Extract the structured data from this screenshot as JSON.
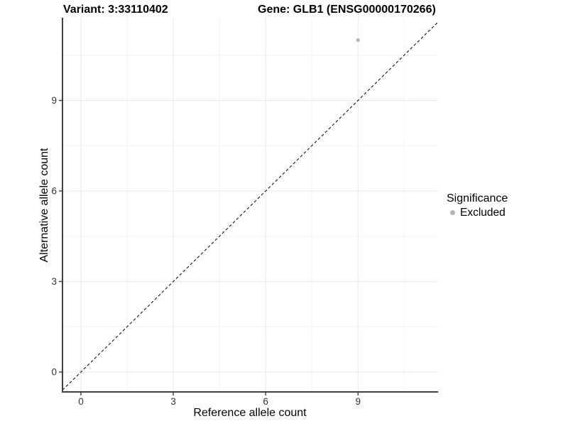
{
  "titles": {
    "variant": "Variant: 3:33110402",
    "gene": "Gene: GLB1 (ENSG00000170266)"
  },
  "legend": {
    "title": "Significance",
    "items": [
      {
        "label": "Excluded",
        "color": "#b4b4b4"
      }
    ]
  },
  "chart_data": {
    "type": "scatter",
    "title_left": "Variant: 3:33110402",
    "title_right": "Gene: GLB1 (ENSG00000170266)",
    "xlabel": "Reference allele count",
    "ylabel": "Alternative allele count",
    "series": [
      {
        "name": "Excluded",
        "color": "#b4b4b4",
        "points": [
          {
            "x": 9,
            "y": 11
          }
        ]
      }
    ],
    "reference_line": {
      "type": "identity y=x",
      "style": "dashed",
      "color": "#000000"
    },
    "xlim": [
      -0.6,
      11.6
    ],
    "ylim": [
      -0.66,
      11.74
    ],
    "x_ticks": [
      0,
      3,
      6,
      9
    ],
    "y_ticks": [
      0,
      3,
      6,
      9
    ],
    "x_minor_ticks": [
      1.5,
      4.5,
      7.5,
      10.5
    ],
    "y_minor_ticks": [
      1.5,
      4.5,
      7.5,
      10.5
    ],
    "grid": true,
    "legend_position": "right",
    "legend_title": "Significance",
    "point_radius": 2.6
  },
  "colors": {
    "background": "#ffffff",
    "grid_major": "#e8e8e8",
    "grid_minor": "#f4f4f4",
    "axis_line": "#3f3f3f",
    "tick_text": "#333333",
    "title_text": "#000000",
    "point": "#b4b4b4"
  }
}
